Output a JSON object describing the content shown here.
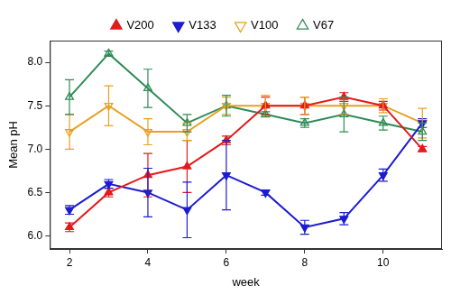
{
  "chart_data": {
    "type": "line",
    "x_label": "week",
    "y_label": "Mean pH",
    "x": [
      2,
      3,
      4,
      5,
      6,
      7,
      8,
      9,
      10,
      11
    ],
    "xlim": [
      1.5,
      11.5
    ],
    "xticks": [
      2,
      4,
      6,
      8,
      10
    ],
    "ylim": [
      5.85,
      8.25
    ],
    "yticks": [
      {
        "value": 6,
        "label": "6.0"
      },
      6.5,
      {
        "value": 7,
        "label": "7.0"
      },
      7.5,
      {
        "value": 8,
        "label": "8.0"
      }
    ],
    "grid": false,
    "legend": "top",
    "series": [
      {
        "name": "V200",
        "color": "#e31a1c",
        "marker": "filled-triangle-up",
        "values": [
          6.1,
          6.5,
          6.7,
          6.8,
          7.1,
          7.5,
          7.5,
          7.6,
          7.5,
          7.0
        ],
        "errors": [
          0.05,
          0.05,
          0.25,
          0.3,
          0.05,
          0.1,
          0.1,
          0.05,
          0.05,
          0.03
        ]
      },
      {
        "name": "V133",
        "color": "#1c1cd0",
        "marker": "filled-triangle-down",
        "values": [
          6.3,
          6.6,
          6.5,
          6.3,
          6.7,
          6.5,
          6.1,
          6.2,
          6.7,
          7.3
        ],
        "errors": [
          0.05,
          0.05,
          0.28,
          0.32,
          0.4,
          0.03,
          0.08,
          0.07,
          0.07,
          0.05
        ]
      },
      {
        "name": "V100",
        "color": "#e8a020",
        "marker": "open-triangle-down",
        "values": [
          7.2,
          7.5,
          7.2,
          7.2,
          7.5,
          7.5,
          7.5,
          7.5,
          7.5,
          7.3
        ],
        "errors": [
          0.2,
          0.23,
          0.15,
          0.1,
          0.1,
          0.12,
          0.1,
          0.1,
          0.08,
          0.17
        ]
      },
      {
        "name": "V67",
        "color": "#2e8b57",
        "marker": "open-triangle-up",
        "values": [
          7.6,
          8.1,
          7.7,
          7.3,
          7.5,
          7.4,
          7.3,
          7.4,
          7.3,
          7.2
        ],
        "errors": [
          0.2,
          0.03,
          0.22,
          0.1,
          0.12,
          0.03,
          0.05,
          0.2,
          0.08,
          0.1
        ]
      }
    ]
  }
}
